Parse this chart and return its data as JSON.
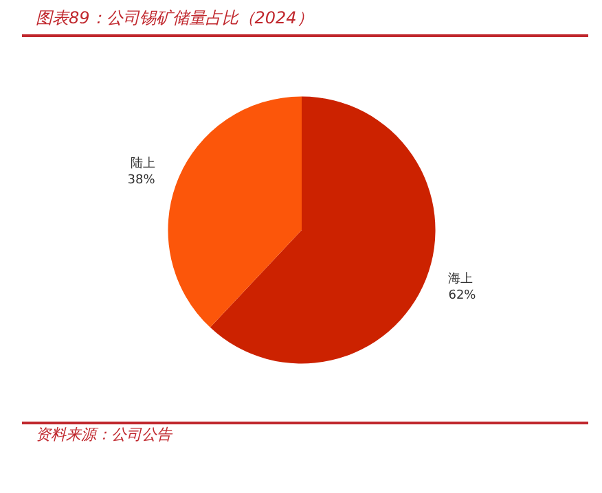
{
  "chart_data": {
    "type": "pie",
    "title": "图表89：公司锡矿储量占比（2024）",
    "categories": [
      "海上",
      "陆上"
    ],
    "values": [
      62,
      38
    ],
    "colors": [
      "#cc2200",
      "#fc560a"
    ],
    "value_labels": [
      "62%",
      "38%"
    ],
    "annotations": [
      "资料来源：公司公告"
    ]
  }
}
